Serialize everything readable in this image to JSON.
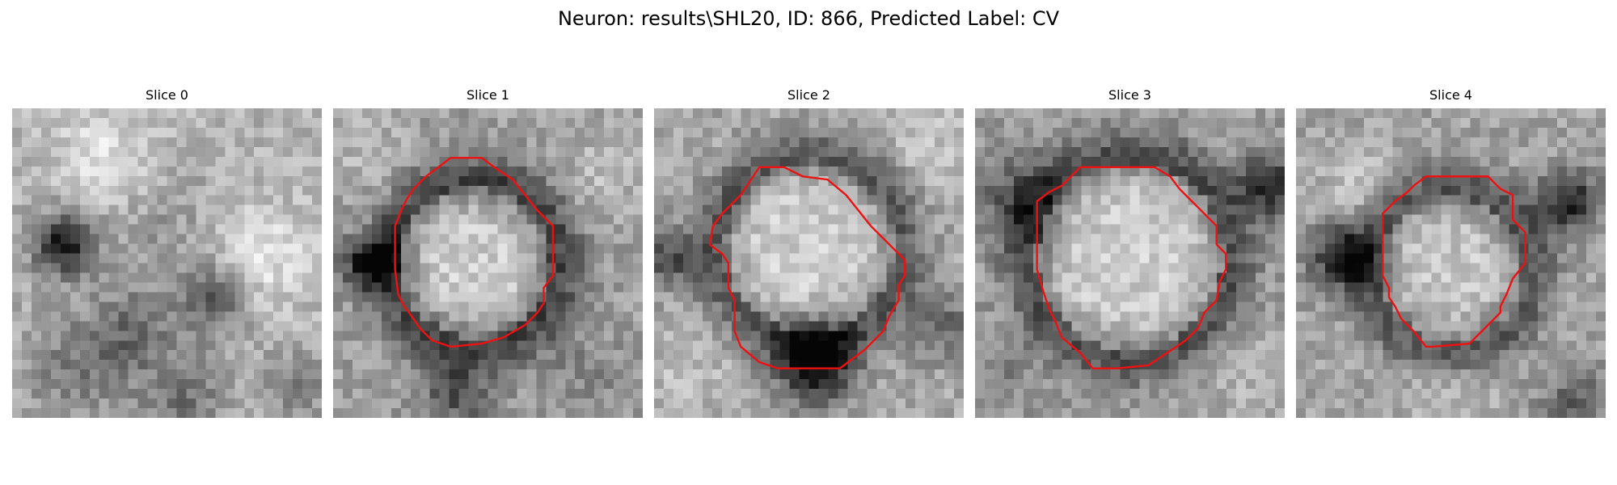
{
  "title": "Neuron: results\\SHL20, ID: 866, Predicted Label: CV",
  "contour_color": "#ee1111",
  "slices": [
    {
      "label": "Slice 0",
      "has_contour": false
    },
    {
      "label": "Slice 1",
      "has_contour": true
    },
    {
      "label": "Slice 2",
      "has_contour": true
    },
    {
      "label": "Slice 3",
      "has_contour": true
    },
    {
      "label": "Slice 4",
      "has_contour": true
    }
  ]
}
